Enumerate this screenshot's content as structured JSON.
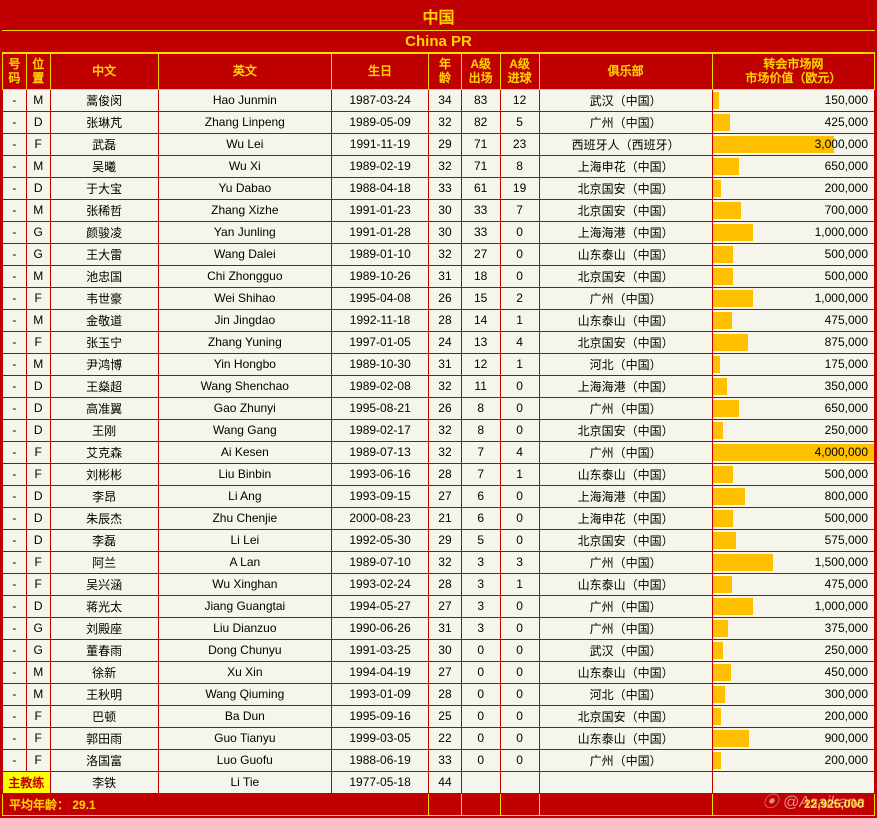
{
  "title_cn": "中国",
  "title_en": "China PR",
  "headers": {
    "num": "号\n码",
    "pos": "位\n置",
    "cn": "中文",
    "en": "英文",
    "birth": "生日",
    "age": "年\n龄",
    "caps": "A级\n出场",
    "goals": "A级\n进球",
    "club": "俱乐部",
    "value": "转会市场网\n市场价值（欧元）"
  },
  "coach_label": "主教练",
  "avg_label": "平均年龄：",
  "avg_value": "29.1",
  "total_value": "22,925,000",
  "watermark": "⦿ @Asaikana",
  "max_value": 4000000,
  "coach": {
    "cn": "李铁",
    "en": "Li Tie",
    "birth": "1977-05-18",
    "age": "44"
  },
  "players": [
    {
      "num": "-",
      "pos": "M",
      "cn": "蒿俊闵",
      "en": "Hao Junmin",
      "birth": "1987-03-24",
      "age": "34",
      "caps": "83",
      "goals": "12",
      "club": "武汉（中国）",
      "value": "150,000",
      "raw": 150000
    },
    {
      "num": "-",
      "pos": "D",
      "cn": "张琳芃",
      "en": "Zhang Linpeng",
      "birth": "1989-05-09",
      "age": "32",
      "caps": "82",
      "goals": "5",
      "club": "广州（中国）",
      "value": "425,000",
      "raw": 425000
    },
    {
      "num": "-",
      "pos": "F",
      "cn": "武磊",
      "en": "Wu Lei",
      "birth": "1991-11-19",
      "age": "29",
      "caps": "71",
      "goals": "23",
      "club": "西班牙人（西班牙）",
      "value": "3,000,000",
      "raw": 3000000
    },
    {
      "num": "-",
      "pos": "M",
      "cn": "吴曦",
      "en": "Wu Xi",
      "birth": "1989-02-19",
      "age": "32",
      "caps": "71",
      "goals": "8",
      "club": "上海申花（中国）",
      "value": "650,000",
      "raw": 650000
    },
    {
      "num": "-",
      "pos": "D",
      "cn": "于大宝",
      "en": "Yu Dabao",
      "birth": "1988-04-18",
      "age": "33",
      "caps": "61",
      "goals": "19",
      "club": "北京国安（中国）",
      "value": "200,000",
      "raw": 200000
    },
    {
      "num": "-",
      "pos": "M",
      "cn": "张稀哲",
      "en": "Zhang Xizhe",
      "birth": "1991-01-23",
      "age": "30",
      "caps": "33",
      "goals": "7",
      "club": "北京国安（中国）",
      "value": "700,000",
      "raw": 700000
    },
    {
      "num": "-",
      "pos": "G",
      "cn": "颜骏凌",
      "en": "Yan Junling",
      "birth": "1991-01-28",
      "age": "30",
      "caps": "33",
      "goals": "0",
      "club": "上海海港（中国）",
      "value": "1,000,000",
      "raw": 1000000
    },
    {
      "num": "-",
      "pos": "G",
      "cn": "王大雷",
      "en": "Wang Dalei",
      "birth": "1989-01-10",
      "age": "32",
      "caps": "27",
      "goals": "0",
      "club": "山东泰山（中国）",
      "value": "500,000",
      "raw": 500000
    },
    {
      "num": "-",
      "pos": "M",
      "cn": "池忠国",
      "en": "Chi Zhongguo",
      "birth": "1989-10-26",
      "age": "31",
      "caps": "18",
      "goals": "0",
      "club": "北京国安（中国）",
      "value": "500,000",
      "raw": 500000
    },
    {
      "num": "-",
      "pos": "F",
      "cn": "韦世豪",
      "en": "Wei Shihao",
      "birth": "1995-04-08",
      "age": "26",
      "caps": "15",
      "goals": "2",
      "club": "广州（中国）",
      "value": "1,000,000",
      "raw": 1000000
    },
    {
      "num": "-",
      "pos": "M",
      "cn": "金敬道",
      "en": "Jin Jingdao",
      "birth": "1992-11-18",
      "age": "28",
      "caps": "14",
      "goals": "1",
      "club": "山东泰山（中国）",
      "value": "475,000",
      "raw": 475000
    },
    {
      "num": "-",
      "pos": "F",
      "cn": "张玉宁",
      "en": "Zhang Yuning",
      "birth": "1997-01-05",
      "age": "24",
      "caps": "13",
      "goals": "4",
      "club": "北京国安（中国）",
      "value": "875,000",
      "raw": 875000
    },
    {
      "num": "-",
      "pos": "M",
      "cn": "尹鸿博",
      "en": "Yin Hongbo",
      "birth": "1989-10-30",
      "age": "31",
      "caps": "12",
      "goals": "1",
      "club": "河北（中国）",
      "value": "175,000",
      "raw": 175000
    },
    {
      "num": "-",
      "pos": "D",
      "cn": "王燊超",
      "en": "Wang Shenchao",
      "birth": "1989-02-08",
      "age": "32",
      "caps": "11",
      "goals": "0",
      "club": "上海海港（中国）",
      "value": "350,000",
      "raw": 350000
    },
    {
      "num": "-",
      "pos": "D",
      "cn": "高准翼",
      "en": "Gao Zhunyi",
      "birth": "1995-08-21",
      "age": "26",
      "caps": "8",
      "goals": "0",
      "club": "广州（中国）",
      "value": "650,000",
      "raw": 650000
    },
    {
      "num": "-",
      "pos": "D",
      "cn": "王刚",
      "en": "Wang Gang",
      "birth": "1989-02-17",
      "age": "32",
      "caps": "8",
      "goals": "0",
      "club": "北京国安（中国）",
      "value": "250,000",
      "raw": 250000
    },
    {
      "num": "-",
      "pos": "F",
      "cn": "艾克森",
      "en": "Ai Kesen",
      "birth": "1989-07-13",
      "age": "32",
      "caps": "7",
      "goals": "4",
      "club": "广州（中国）",
      "value": "4,000,000",
      "raw": 4000000
    },
    {
      "num": "-",
      "pos": "F",
      "cn": "刘彬彬",
      "en": "Liu Binbin",
      "birth": "1993-06-16",
      "age": "28",
      "caps": "7",
      "goals": "1",
      "club": "山东泰山（中国）",
      "value": "500,000",
      "raw": 500000
    },
    {
      "num": "-",
      "pos": "D",
      "cn": "李昂",
      "en": "Li Ang",
      "birth": "1993-09-15",
      "age": "27",
      "caps": "6",
      "goals": "0",
      "club": "上海海港（中国）",
      "value": "800,000",
      "raw": 800000
    },
    {
      "num": "-",
      "pos": "D",
      "cn": "朱辰杰",
      "en": "Zhu Chenjie",
      "birth": "2000-08-23",
      "age": "21",
      "caps": "6",
      "goals": "0",
      "club": "上海申花（中国）",
      "value": "500,000",
      "raw": 500000
    },
    {
      "num": "-",
      "pos": "D",
      "cn": "李磊",
      "en": "Li Lei",
      "birth": "1992-05-30",
      "age": "29",
      "caps": "5",
      "goals": "0",
      "club": "北京国安（中国）",
      "value": "575,000",
      "raw": 575000
    },
    {
      "num": "-",
      "pos": "F",
      "cn": "阿兰",
      "en": "A Lan",
      "birth": "1989-07-10",
      "age": "32",
      "caps": "3",
      "goals": "3",
      "club": "广州（中国）",
      "value": "1,500,000",
      "raw": 1500000
    },
    {
      "num": "-",
      "pos": "F",
      "cn": "吴兴涵",
      "en": "Wu Xinghan",
      "birth": "1993-02-24",
      "age": "28",
      "caps": "3",
      "goals": "1",
      "club": "山东泰山（中国）",
      "value": "475,000",
      "raw": 475000
    },
    {
      "num": "-",
      "pos": "D",
      "cn": "蒋光太",
      "en": "Jiang Guangtai",
      "birth": "1994-05-27",
      "age": "27",
      "caps": "3",
      "goals": "0",
      "club": "广州（中国）",
      "value": "1,000,000",
      "raw": 1000000
    },
    {
      "num": "-",
      "pos": "G",
      "cn": "刘殿座",
      "en": "Liu Dianzuo",
      "birth": "1990-06-26",
      "age": "31",
      "caps": "3",
      "goals": "0",
      "club": "广州（中国）",
      "value": "375,000",
      "raw": 375000
    },
    {
      "num": "-",
      "pos": "G",
      "cn": "董春雨",
      "en": "Dong Chunyu",
      "birth": "1991-03-25",
      "age": "30",
      "caps": "0",
      "goals": "0",
      "club": "武汉（中国）",
      "value": "250,000",
      "raw": 250000
    },
    {
      "num": "-",
      "pos": "M",
      "cn": "徐新",
      "en": "Xu Xin",
      "birth": "1994-04-19",
      "age": "27",
      "caps": "0",
      "goals": "0",
      "club": "山东泰山（中国）",
      "value": "450,000",
      "raw": 450000
    },
    {
      "num": "-",
      "pos": "M",
      "cn": "王秋明",
      "en": "Wang Qiuming",
      "birth": "1993-01-09",
      "age": "28",
      "caps": "0",
      "goals": "0",
      "club": "河北（中国）",
      "value": "300,000",
      "raw": 300000
    },
    {
      "num": "-",
      "pos": "F",
      "cn": "巴顿",
      "en": "Ba Dun",
      "birth": "1995-09-16",
      "age": "25",
      "caps": "0",
      "goals": "0",
      "club": "北京国安（中国）",
      "value": "200,000",
      "raw": 200000
    },
    {
      "num": "-",
      "pos": "F",
      "cn": "郭田雨",
      "en": "Guo Tianyu",
      "birth": "1999-03-05",
      "age": "22",
      "caps": "0",
      "goals": "0",
      "club": "山东泰山（中国）",
      "value": "900,000",
      "raw": 900000
    },
    {
      "num": "-",
      "pos": "F",
      "cn": "洛国富",
      "en": "Luo Guofu",
      "birth": "1988-06-19",
      "age": "33",
      "caps": "0",
      "goals": "0",
      "club": "广州（中国）",
      "value": "200,000",
      "raw": 200000
    }
  ]
}
